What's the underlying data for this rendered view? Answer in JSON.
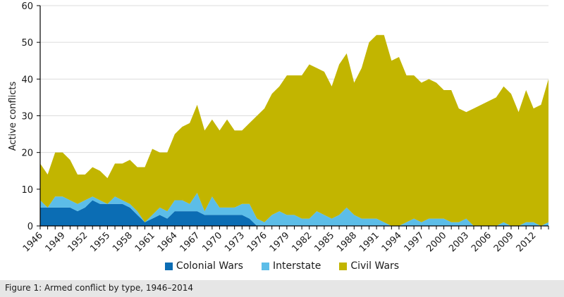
{
  "caption": "Figure 1: Armed conflict by type, 1946–2014",
  "chart_data": {
    "type": "area",
    "stacked": true,
    "title": "",
    "xlabel": "",
    "ylabel": "Active conflicts",
    "ylim": [
      0,
      60
    ],
    "yticks": [
      0,
      10,
      20,
      30,
      40,
      50,
      60
    ],
    "grid": true,
    "legend": "bottom-center",
    "x": [
      1946,
      1947,
      1948,
      1949,
      1950,
      1951,
      1952,
      1953,
      1954,
      1955,
      1956,
      1957,
      1958,
      1959,
      1960,
      1961,
      1962,
      1963,
      1964,
      1965,
      1966,
      1967,
      1968,
      1969,
      1970,
      1971,
      1972,
      1973,
      1974,
      1975,
      1976,
      1977,
      1978,
      1979,
      1980,
      1981,
      1982,
      1983,
      1984,
      1985,
      1986,
      1987,
      1988,
      1989,
      1990,
      1991,
      1992,
      1993,
      1994,
      1995,
      1996,
      1997,
      1998,
      1999,
      2000,
      2001,
      2002,
      2003,
      2004,
      2005,
      2006,
      2007,
      2008,
      2009,
      2010,
      2011,
      2012,
      2013,
      2014
    ],
    "xtick_labels": [
      "1946",
      "1949",
      "1952",
      "1955",
      "1958",
      "1961",
      "1964",
      "1967",
      "1970",
      "1973",
      "1976",
      "1979",
      "1982",
      "1985",
      "1988",
      "1991",
      "1994",
      "1997",
      "2000",
      "2003",
      "2006",
      "2009",
      "2012"
    ],
    "series": [
      {
        "name": "Colonial Wars",
        "color": "#0b6db4",
        "values": [
          5,
          5,
          5,
          5,
          5,
          4,
          5,
          7,
          6,
          6,
          6,
          6,
          5,
          3,
          1,
          2,
          3,
          2,
          4,
          4,
          4,
          4,
          3,
          3,
          3,
          3,
          3,
          3,
          2,
          0,
          0,
          0,
          0,
          0,
          0,
          0,
          0,
          0,
          0,
          0,
          0,
          0,
          0,
          0,
          0,
          0,
          0,
          0,
          0,
          0,
          0,
          0,
          0,
          0,
          0,
          0,
          0,
          0,
          0,
          0,
          0,
          0,
          0,
          0,
          0,
          0,
          0,
          0,
          0
        ]
      },
      {
        "name": "Interstate",
        "color": "#5cbde8",
        "values": [
          2,
          0,
          3,
          3,
          2,
          2,
          2,
          1,
          1,
          0,
          2,
          1,
          1,
          1,
          0,
          1,
          2,
          2,
          3,
          3,
          2,
          5,
          1,
          5,
          2,
          2,
          2,
          3,
          4,
          2,
          1,
          3,
          4,
          3,
          3,
          2,
          2,
          4,
          3,
          2,
          3,
          5,
          3,
          2,
          2,
          2,
          1,
          0,
          0,
          1,
          2,
          1,
          2,
          2,
          2,
          1,
          1,
          2,
          0,
          0,
          0,
          0,
          1,
          0,
          0,
          1,
          1,
          0,
          1
        ]
      },
      {
        "name": "Civil Wars",
        "color": "#c2b500",
        "values": [
          10,
          9,
          12,
          12,
          11,
          8,
          7,
          8,
          8,
          7,
          9,
          10,
          12,
          12,
          15,
          18,
          15,
          16,
          18,
          20,
          22,
          24,
          22,
          21,
          21,
          24,
          21,
          20,
          22,
          28,
          31,
          33,
          34,
          38,
          38,
          39,
          42,
          39,
          39,
          36,
          41,
          42,
          36,
          41,
          48,
          50,
          51,
          45,
          46,
          40,
          39,
          38,
          38,
          37,
          35,
          36,
          31,
          29,
          32,
          33,
          34,
          35,
          37,
          36,
          31,
          36,
          31,
          33,
          39
        ]
      }
    ]
  }
}
